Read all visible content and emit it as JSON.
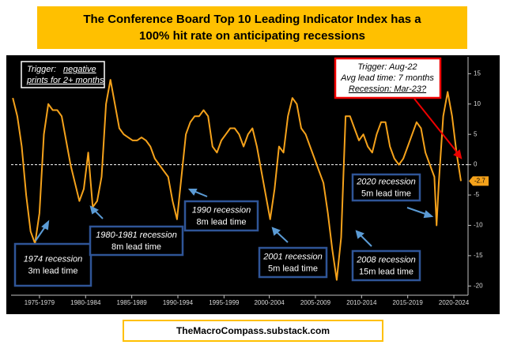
{
  "chart_data": {
    "type": "line",
    "title": [
      "The Conference Board Top 10 Leading Indicator Index has a",
      "100% hit rate on anticipating recessions"
    ],
    "color": "#f5a21b",
    "x": [
      1972.5,
      1973,
      1973.5,
      1974,
      1974.5,
      1975,
      1975.5,
      1976,
      1976.5,
      1977,
      1977.5,
      1978,
      1978.5,
      1979,
      1979.5,
      1980,
      1980.5,
      1981,
      1981.5,
      1982,
      1982.5,
      1983,
      1983.5,
      1984,
      1984.5,
      1985,
      1985.5,
      1986,
      1986.5,
      1987,
      1987.5,
      1988,
      1988.5,
      1989,
      1989.5,
      1990,
      1990.5,
      1991,
      1991.5,
      1992,
      1992.5,
      1993,
      1993.5,
      1994,
      1994.5,
      1995,
      1995.5,
      1996,
      1996.5,
      1997,
      1997.5,
      1998,
      1998.5,
      1999,
      1999.5,
      2000,
      2000.5,
      2001,
      2001.5,
      2002,
      2002.5,
      2003,
      2003.5,
      2004,
      2004.5,
      2005,
      2005.5,
      2006,
      2006.5,
      2007,
      2007.5,
      2008,
      2008.5,
      2009,
      2009.5,
      2010,
      2010.5,
      2011,
      2011.5,
      2012,
      2012.5,
      2013,
      2013.5,
      2014,
      2014.5,
      2015,
      2015.5,
      2016,
      2016.5,
      2017,
      2017.5,
      2018,
      2018.5,
      2019,
      2019.5,
      2020,
      2020.25,
      2020.5,
      2021,
      2021.5,
      2022,
      2022.5,
      2023
    ],
    "values": [
      11,
      8,
      3,
      -5,
      -11,
      -13,
      -8,
      5,
      10,
      9,
      9,
      8,
      4,
      0,
      -3,
      -6,
      -4,
      2,
      -7,
      -6,
      -2,
      10,
      14,
      10,
      6,
      5,
      4.5,
      4,
      4,
      4.5,
      4,
      3,
      1,
      0,
      -1,
      -2,
      -6,
      -9,
      -2,
      5,
      7,
      8,
      8,
      9,
      8,
      3,
      2,
      4,
      5,
      6,
      6,
      5,
      3,
      5,
      6,
      3,
      -1,
      -5,
      -9,
      -4,
      3,
      2,
      8,
      11,
      10,
      6,
      5,
      3,
      1,
      -1,
      -3,
      -8,
      -14,
      -19,
      -12,
      8,
      8,
      6,
      4,
      5,
      3,
      2,
      5,
      7,
      7,
      3,
      1,
      0,
      1,
      3,
      5,
      7,
      6,
      2,
      0,
      -2,
      -10,
      -3,
      8,
      12,
      8,
      2,
      -2.7
    ],
    "xlim": [
      1972.3,
      2023.8
    ],
    "xticks": [
      {
        "value": 1975.5,
        "label": "1975-1979"
      },
      {
        "value": 1980.7,
        "label": "1980-1984"
      },
      {
        "value": 1985.9,
        "label": "1985-1989"
      },
      {
        "value": 1991.1,
        "label": "1990-1994"
      },
      {
        "value": 1996.3,
        "label": "1995-1999"
      },
      {
        "value": 2001.4,
        "label": "2000-2004"
      },
      {
        "value": 2006.6,
        "label": "2005-2009"
      },
      {
        "value": 2011.8,
        "label": "2010-2014"
      },
      {
        "value": 2017.0,
        "label": "2015-2019"
      },
      {
        "value": 2022.2,
        "label": "2020-2024"
      }
    ],
    "ylim": [
      -21,
      17
    ],
    "yticks": [
      -20,
      -15,
      -10,
      -5,
      0,
      5,
      10,
      15
    ],
    "trigger_note": {
      "label": "Trigger:",
      "lines": [
        "negative",
        "prints for 2+ months"
      ]
    },
    "callout": [
      "Trigger: Aug-22",
      "Avg lead time: 7 months",
      "Recession: Mar-23?"
    ],
    "recessions": [
      [
        "1974 recession",
        "3m lead time"
      ],
      [
        "1980-1981 recession",
        "8m lead time"
      ],
      [
        "1990 recession",
        "8m lead time"
      ],
      [
        "2001 recession",
        "5m lead time"
      ],
      [
        "2008 recession",
        "15m lead time"
      ],
      [
        "2020 recession",
        "5m lead time"
      ]
    ],
    "source": "TheMacroCompass.substack.com"
  }
}
